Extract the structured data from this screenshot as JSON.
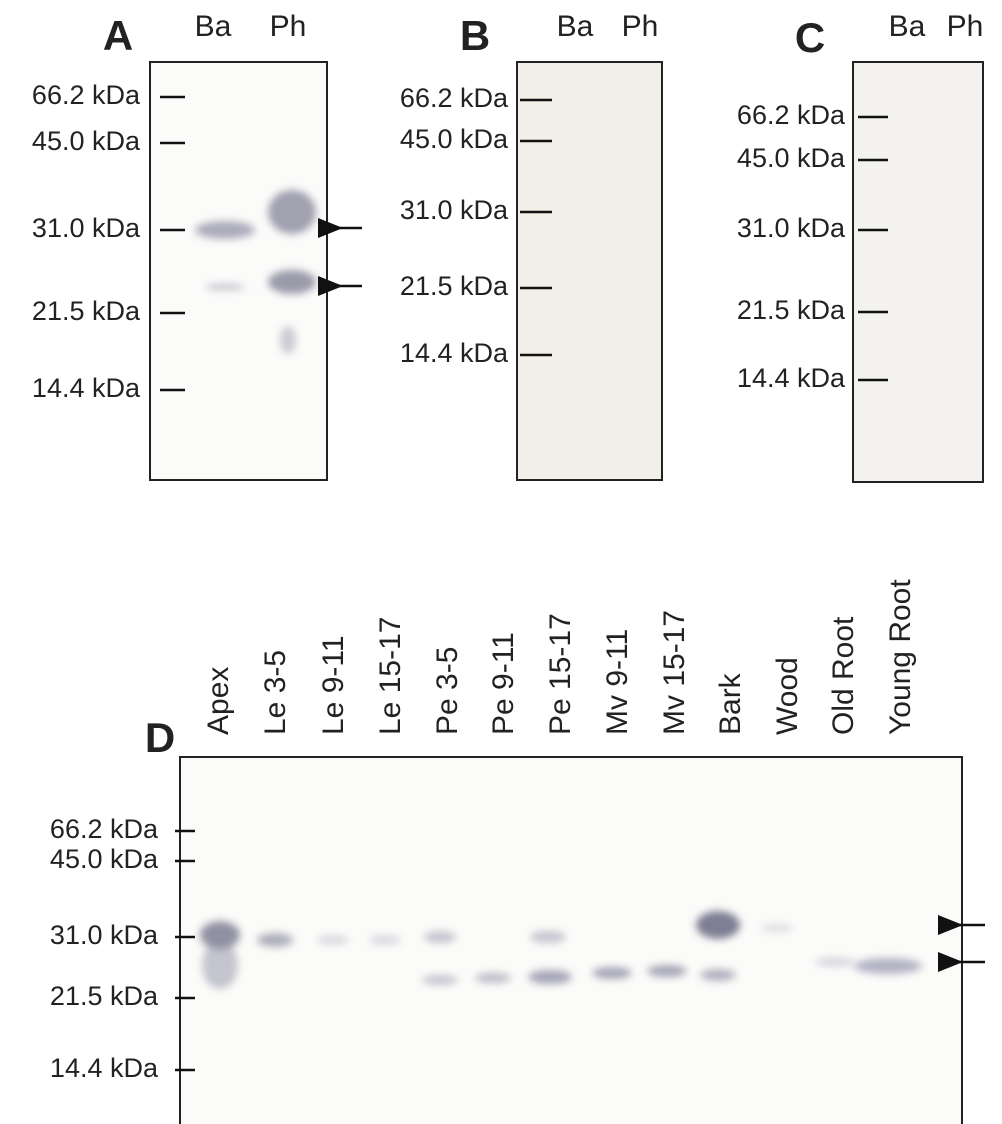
{
  "panels": [
    {
      "label": "A",
      "lanes": [
        "Ba",
        "Ph"
      ],
      "markers": [
        "66.2 kDa",
        "45.0 kDa",
        "31.0 kDa",
        "21.5 kDa",
        "14.4 kDa"
      ]
    },
    {
      "label": "B",
      "lanes": [
        "Ba",
        "Ph"
      ],
      "markers": [
        "66.2 kDa",
        "45.0 kDa",
        "31.0 kDa",
        "21.5 kDa",
        "14.4 kDa"
      ]
    },
    {
      "label": "C",
      "lanes": [
        "Ba",
        "Ph"
      ],
      "markers": [
        "66.2 kDa",
        "45.0 kDa",
        "31.0 kDa",
        "21.5 kDa",
        "14.4 kDa"
      ]
    },
    {
      "label": "D",
      "lanes": [
        "Apex",
        "Le 3-5",
        "Le 9-11",
        "Le 15-17",
        "Pe 3-5",
        "Pe 9-11",
        "Pe 15-17",
        "Mv 9-11",
        "Mv 15-17",
        "Bark",
        "Wood",
        "Old Root",
        "Young Root"
      ],
      "markers": [
        "66.2 kDa",
        "45.0 kDa",
        "31.0 kDa",
        "21.5 kDa",
        "14.4 kDa"
      ]
    }
  ]
}
